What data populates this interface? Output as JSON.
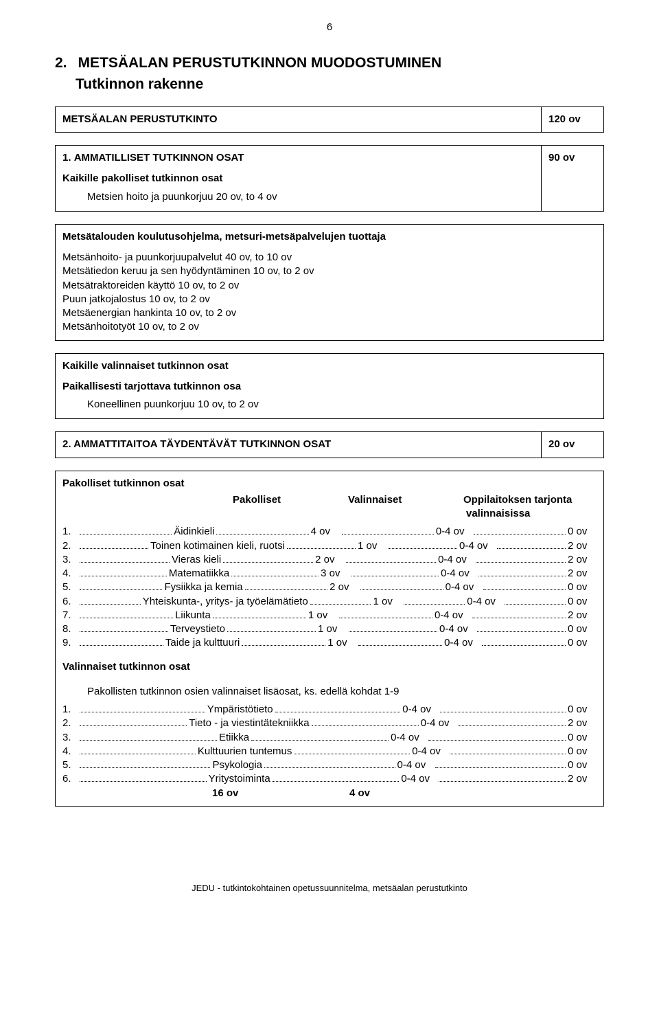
{
  "page_number": "6",
  "section_number": "2.",
  "section_title": "METSÄALAN PERUSTUTKINNON MUODOSTUMINEN",
  "section_sub": "Tutkinnon rakenne",
  "box1": {
    "title": "METSÄALAN PERUSTUTKINTO",
    "ov": "120 ov"
  },
  "box2": {
    "header_num": "1.",
    "header_txt": "AMMATILLISET TUTKINNON OSAT",
    "ov": "90 ov",
    "block1_title": "Kaikille pakolliset tutkinnon osat",
    "block1_line": "Metsien hoito ja puunkorjuu 20 ov, to 4 ov"
  },
  "box3": {
    "title": "Metsätalouden koulutusohjelma, metsuri-metsäpalvelujen tuottaja",
    "lines": [
      "Metsänhoito- ja puunkorjuupalvelut 40 ov, to 10 ov",
      "Metsätiedon keruu ja sen hyödyntäminen 10 ov, to 2 ov",
      "Metsätraktoreiden käyttö 10 ov, to 2 ov",
      "Puun jatkojalostus 10 ov, to 2 ov",
      "Metsäenergian hankinta 10 ov, to 2 ov",
      "Metsänhoitotyöt 10 ov, to 2 ov"
    ]
  },
  "box4": {
    "t1": "Kaikille valinnaiset tutkinnon osat",
    "t2": "Paikallisesti tarjottava tutkinnon osa",
    "line": "Koneellinen puunkorjuu 10 ov, to 2 ov"
  },
  "box5": {
    "num": "2.",
    "txt": "AMMATTITAITOA TÄYDENTÄVÄT TUTKINNON OSAT",
    "ov": "20 ov"
  },
  "compulsory": {
    "title": "Pakolliset tutkinnon osat",
    "h_pak": "Pakolliset",
    "h_val": "Valinnaiset",
    "h_opp1": "Oppilaitoksen tarjonta",
    "h_opp2": "valinnaisissa",
    "rows": [
      {
        "i": "1.",
        "label": "Äidinkieli",
        "p": "4 ov",
        "v": "0-4 ov",
        "o": "0 ov"
      },
      {
        "i": "2.",
        "label": "Toinen kotimainen kieli, ruotsi",
        "p": "1 ov",
        "v": "0-4 ov",
        "o": "2 ov"
      },
      {
        "i": "3.",
        "label": "Vieras kieli",
        "p": "2 ov",
        "v": "0-4 ov",
        "o": "2 ov"
      },
      {
        "i": "4.",
        "label": "Matematiikka",
        "p": "3 ov",
        "v": "0-4 ov",
        "o": "2 ov"
      },
      {
        "i": "5.",
        "label": "Fysiikka ja kemia",
        "p": "2 ov",
        "v": "0-4 ov",
        "o": "0 ov"
      },
      {
        "i": "6.",
        "label": "Yhteiskunta-, yritys- ja työelämätieto",
        "p": "1 ov",
        "v": "0-4 ov",
        "o": "0 ov"
      },
      {
        "i": "7.",
        "label": "Liikunta",
        "p": "1 ov",
        "v": "0-4 ov",
        "o": "2 ov"
      },
      {
        "i": "8.",
        "label": "Terveystieto",
        "p": "1 ov",
        "v": "0-4 ov",
        "o": "0 ov"
      },
      {
        "i": "9.",
        "label": "Taide ja kulttuuri",
        "p": "1 ov",
        "v": "0-4 ov",
        "o": "0 ov"
      }
    ]
  },
  "optional": {
    "title": "Valinnaiset tutkinnon osat",
    "leadin": "Pakollisten tutkinnon osien valinnaiset lisäosat, ks. edellä kohdat 1-9",
    "rows": [
      {
        "i": "1.",
        "label": "Ympäristötieto",
        "v": "0-4 ov",
        "o": "0 ov"
      },
      {
        "i": "2.",
        "label": "Tieto - ja viestintätekniikka",
        "v": "0-4 ov",
        "o": "2 ov"
      },
      {
        "i": "3.",
        "label": "Etiikka",
        "v": "0-4 ov",
        "o": "0 ov"
      },
      {
        "i": "4.",
        "label": "Kulttuurien tuntemus",
        "v": "0-4 ov",
        "o": "0 ov"
      },
      {
        "i": "5.",
        "label": "Psykologia",
        "v": "0-4 ov",
        "o": "0 ov"
      },
      {
        "i": "6.",
        "label": "Yritystoiminta",
        "v": "0-4 ov",
        "o": "2 ov"
      }
    ],
    "total1": "16 ov",
    "total2": "4 ov"
  },
  "footer": "JEDU - tutkintokohtainen opetussuunnitelma, metsäalan perustutkinto"
}
